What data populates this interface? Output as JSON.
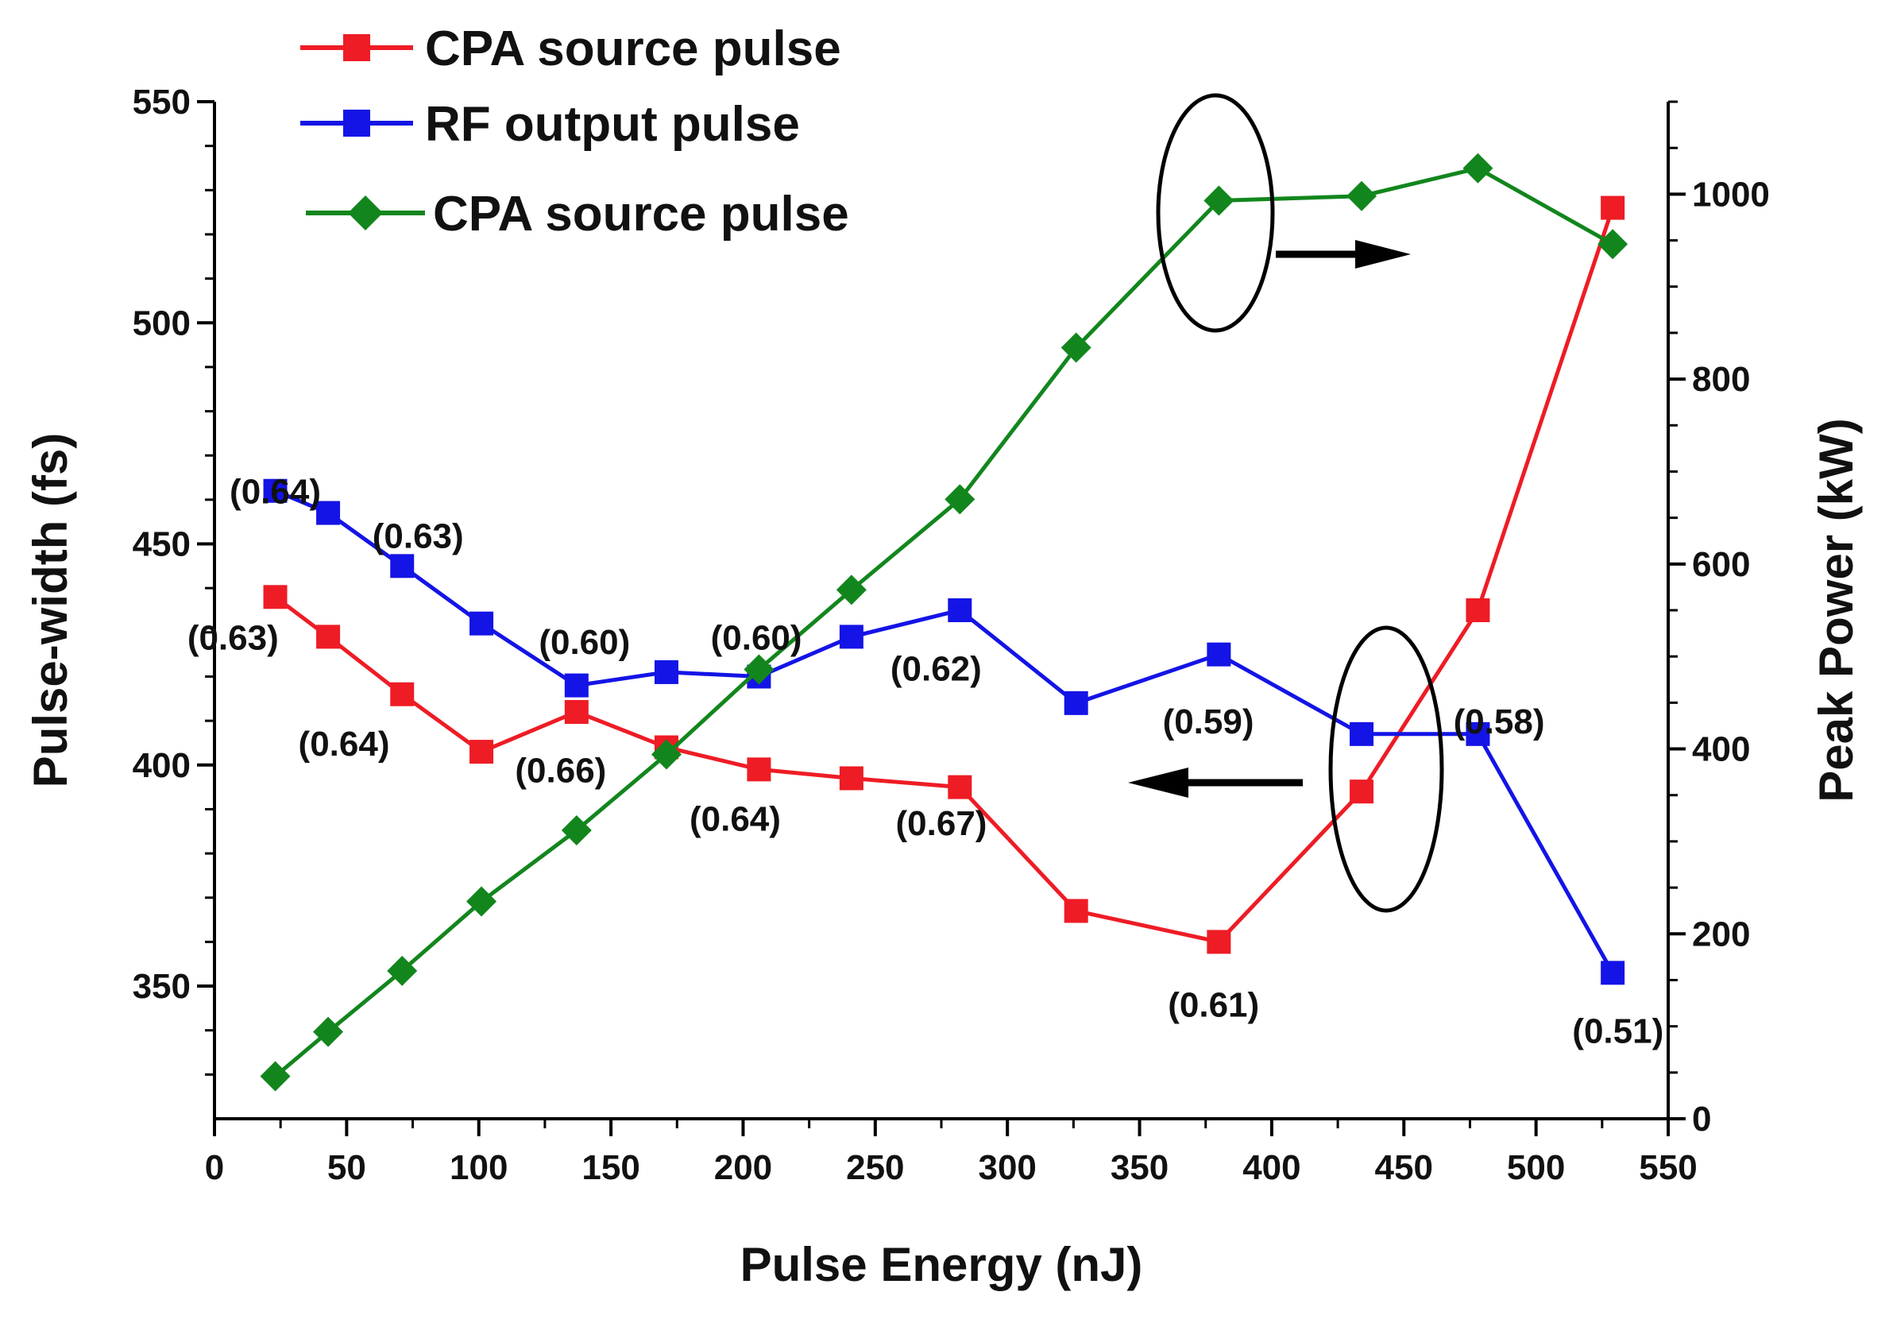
{
  "chart_data": {
    "type": "line",
    "title": "",
    "xlabel": "Pulse Energy (nJ)",
    "ylabel": "Pulse-width (fs)",
    "y2label": "Peak Power (kW)",
    "xlim": [
      0,
      550
    ],
    "ylim": [
      320,
      550
    ],
    "y2lim": [
      0,
      1100
    ],
    "x_ticks": [
      "0",
      "50",
      "100",
      "150",
      "200",
      "250",
      "300",
      "350",
      "400",
      "450",
      "500",
      "550"
    ],
    "y_ticks": [
      "350",
      "400",
      "450",
      "500",
      "550"
    ],
    "y2_ticks": [
      "0",
      "200",
      "400",
      "600",
      "800",
      "1000"
    ],
    "legend_position": "top-left",
    "series": [
      {
        "name": "CPA source pulse",
        "axis": "left",
        "color": "#ee1c25",
        "marker": "square",
        "x": [
          23,
          43,
          71,
          101,
          137,
          171,
          206,
          241,
          282,
          326,
          380,
          434,
          478,
          529
        ],
        "values": [
          438,
          429,
          416,
          403,
          412,
          404,
          399,
          397,
          395,
          367,
          360,
          394,
          435,
          526
        ]
      },
      {
        "name": "RF output pulse",
        "axis": "left",
        "color": "#1414e6",
        "marker": "square",
        "x": [
          23,
          43,
          71,
          101,
          137,
          171,
          206,
          241,
          282,
          326,
          380,
          434,
          478,
          529
        ],
        "values": [
          462,
          457,
          445,
          432,
          418,
          421,
          420,
          429,
          435,
          414,
          425,
          407,
          407,
          353
        ]
      },
      {
        "name": "CPA source pulse",
        "axis": "right",
        "color": "#12861d",
        "marker": "diamond",
        "x": [
          23,
          43,
          71,
          101,
          137,
          171,
          206,
          241,
          282,
          326,
          380,
          434,
          478,
          529
        ],
        "values": [
          46,
          94,
          160,
          235,
          312,
          394,
          486,
          572,
          670,
          834,
          993,
          998,
          1028,
          946
        ]
      }
    ],
    "annotations": [
      {
        "text": "(0.64)",
        "x": 23,
        "y": 462
      },
      {
        "text": "(0.63)",
        "x": 77,
        "y": 452
      },
      {
        "text": "(0.63)",
        "x": 7,
        "y": 429
      },
      {
        "text": "(0.64)",
        "x": 49,
        "y": 405
      },
      {
        "text": "(0.60)",
        "x": 140,
        "y": 428
      },
      {
        "text": "(0.60)",
        "x": 205,
        "y": 429
      },
      {
        "text": "(0.66)",
        "x": 131,
        "y": 399
      },
      {
        "text": "(0.62)",
        "x": 273,
        "y": 422
      },
      {
        "text": "(0.64)",
        "x": 197,
        "y": 388
      },
      {
        "text": "(0.67)",
        "x": 275,
        "y": 387
      },
      {
        "text": "(0.59)",
        "x": 376,
        "y": 410
      },
      {
        "text": "(0.61)",
        "x": 378,
        "y": 346
      },
      {
        "text": "(0.58)",
        "x": 486,
        "y": 410
      },
      {
        "text": "(0.51)",
        "x": 531,
        "y": 340
      }
    ],
    "arrows": [
      {
        "direction": "right",
        "points_to_axis": "right",
        "series": "CPA source pulse (Peak Power)"
      },
      {
        "direction": "left",
        "points_to_axis": "left",
        "series": "Pulse-width series"
      }
    ]
  }
}
